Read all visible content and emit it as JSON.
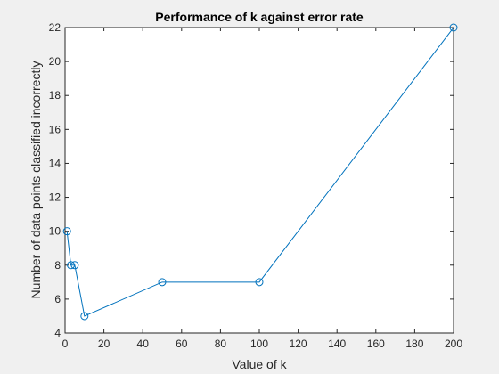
{
  "chart_data": {
    "type": "line",
    "title": "Performance of k against error rate",
    "xlabel": "Value of k",
    "ylabel": "Number of data points classified incorrectly",
    "xlim": [
      0,
      200
    ],
    "ylim": [
      4,
      22
    ],
    "xticks": [
      0,
      20,
      40,
      60,
      80,
      100,
      120,
      140,
      160,
      180,
      200
    ],
    "yticks": [
      4,
      6,
      8,
      10,
      12,
      14,
      16,
      18,
      20,
      22
    ],
    "grid": false,
    "legend": "none",
    "marker": "circle",
    "colors": {
      "line": "#0072bd",
      "axis": "#262626",
      "plot_background": "#ffffff",
      "figure_background": "#f0f0f0"
    },
    "series": [
      {
        "x": [
          1,
          3,
          5,
          10,
          50,
          100,
          200
        ],
        "y": [
          10,
          8,
          8,
          5,
          7,
          7,
          22
        ]
      }
    ]
  }
}
